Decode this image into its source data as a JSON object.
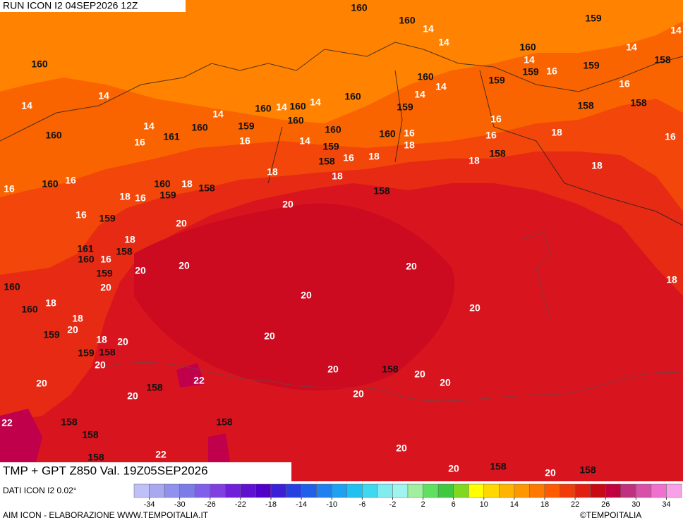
{
  "header": {
    "run": "RUN ICON I2 04SEP2026 12Z"
  },
  "footer": {
    "title": "TMP + GPT Z850 Val. 19Z05SEP2026",
    "source": "DATI ICON I2 0.02°",
    "credit": "AIM ICON - ELABORAZIONE WWW.TEMPOITALIA.IT",
    "copyright": "©TEMPOITALIA"
  },
  "legend": {
    "ticks": [
      -34,
      -30,
      -26,
      -22,
      -18,
      -14,
      -10,
      -6,
      -2,
      2,
      6,
      10,
      14,
      18,
      22,
      26,
      30,
      34
    ],
    "colors": [
      "#c0c0f8",
      "#a8a8f0",
      "#9090ee",
      "#7c7ce8",
      "#8060e8",
      "#8040e0",
      "#7020d8",
      "#6010d0",
      "#5000c8",
      "#3c20d8",
      "#2840e0",
      "#2060e8",
      "#2080f0",
      "#20a0f0",
      "#20c0f0",
      "#40d8f0",
      "#80ecf0",
      "#a0f4f0",
      "#a0f0a0",
      "#60e060",
      "#40c840",
      "#80d820",
      "#ffff00",
      "#ffd800",
      "#ffb400",
      "#ff9800",
      "#ff7800",
      "#ff5a00",
      "#f03c0a",
      "#e02010",
      "#c80a14",
      "#c00040",
      "#c03080",
      "#d850a8",
      "#f070d0",
      "#f8a0e8"
    ]
  },
  "map": {
    "labels": [
      "14",
      "14",
      "14",
      "14",
      "14",
      "14",
      "14",
      "14",
      "14",
      "14",
      "14",
      "14",
      "14",
      "14",
      "16",
      "16",
      "16",
      "16",
      "16",
      "16",
      "16",
      "16",
      "16",
      "16",
      "16",
      "16",
      "16",
      "16",
      "18",
      "18",
      "18",
      "18",
      "18",
      "18",
      "18",
      "18",
      "18",
      "18",
      "18",
      "18",
      "18",
      "18",
      "20",
      "20",
      "20",
      "20",
      "20",
      "20",
      "20",
      "20",
      "20",
      "20",
      "20",
      "20",
      "20",
      "20",
      "20",
      "20",
      "20",
      "20",
      "20",
      "20",
      "20",
      "22",
      "22",
      "22",
      "160",
      "160",
      "160",
      "160",
      "160",
      "160",
      "160",
      "160",
      "160",
      "160",
      "160",
      "160",
      "160",
      "160",
      "160",
      "160",
      "160",
      "160",
      "161",
      "161",
      "159",
      "159",
      "159",
      "159",
      "159",
      "159",
      "159",
      "159",
      "159",
      "159",
      "159",
      "159",
      "158",
      "158",
      "158",
      "158",
      "158",
      "158",
      "158",
      "158",
      "158",
      "158",
      "158",
      "158",
      "158",
      "158",
      "158",
      "158",
      "158"
    ]
  }
}
